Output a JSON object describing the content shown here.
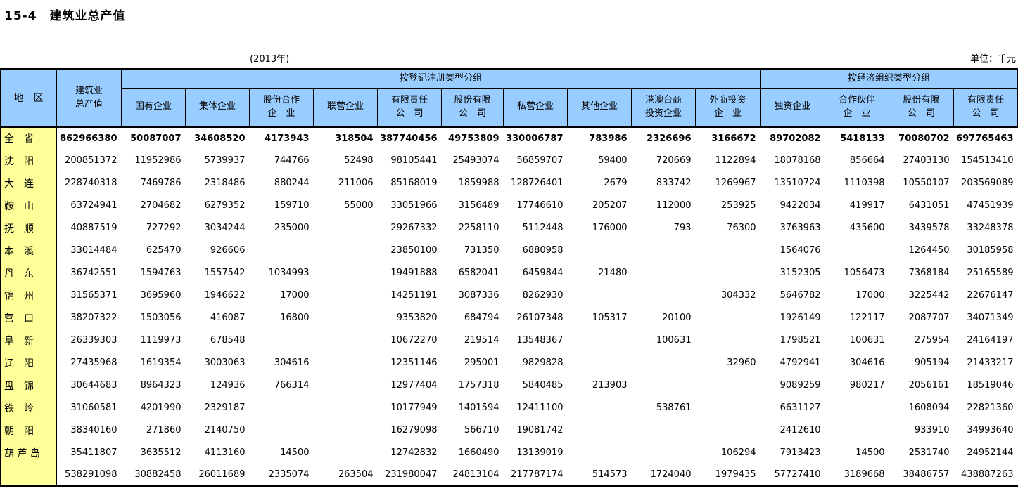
{
  "page": {
    "title": "15-4　建筑业总产值",
    "year_note": "(2013年)",
    "unit_note": "单位：千元"
  },
  "table": {
    "corner_header": "地　区",
    "total_col_header_line1": "建筑业",
    "total_col_header_line2": "总产值",
    "groups": [
      {
        "label": "按登记注册类型分组"
      },
      {
        "label": "按经济组织类型分组"
      }
    ],
    "columns": [
      {
        "line1": "国有企业",
        "line2": ""
      },
      {
        "line1": "集体企业",
        "line2": ""
      },
      {
        "line1": "股份合作",
        "line2": "企　业"
      },
      {
        "line1": "联营企业",
        "line2": ""
      },
      {
        "line1": "有限责任",
        "line2": "公　司"
      },
      {
        "line1": "股份有限",
        "line2": "公　司"
      },
      {
        "line1": "私营企业",
        "line2": ""
      },
      {
        "line1": "其他企业",
        "line2": ""
      },
      {
        "line1": "港澳台商",
        "line2": "投资企业"
      },
      {
        "line1": "外商投资",
        "line2": "企　业"
      },
      {
        "line1": "独资企业",
        "line2": ""
      },
      {
        "line1": "合作伙伴",
        "line2": "企　业"
      },
      {
        "line1": "股份有限",
        "line2": "公　司"
      },
      {
        "line1": "有限责任",
        "line2": "公　司"
      }
    ],
    "rows": [
      {
        "region": "全　省",
        "bold": true,
        "values": [
          "862966380",
          "50087007",
          "34608520",
          "4173943",
          "318504",
          "387740456",
          "49753809",
          "330006787",
          "783986",
          "2326696",
          "3166672",
          "89702082",
          "5418133",
          "70080702",
          "697765463"
        ]
      },
      {
        "region": "沈　阳",
        "bold": false,
        "values": [
          "200851372",
          "11952986",
          "5739937",
          "744766",
          "52498",
          "98105441",
          "25493074",
          "56859707",
          "59400",
          "720669",
          "1122894",
          "18078168",
          "856664",
          "27403130",
          "154513410"
        ]
      },
      {
        "region": "大　连",
        "bold": false,
        "values": [
          "228740318",
          "7469786",
          "2318486",
          "880244",
          "211006",
          "85168019",
          "1859988",
          "128726401",
          "2679",
          "833742",
          "1269967",
          "13510724",
          "1110398",
          "10550107",
          "203569089"
        ]
      },
      {
        "region": "鞍　山",
        "bold": false,
        "values": [
          "63724941",
          "2704682",
          "6279352",
          "159710",
          "55000",
          "33051966",
          "3156489",
          "17746610",
          "205207",
          "112000",
          "253925",
          "9422034",
          "419917",
          "6431051",
          "47451939"
        ]
      },
      {
        "region": "抚　顺",
        "bold": false,
        "values": [
          "40887519",
          "727292",
          "3034244",
          "235000",
          "",
          "29267332",
          "2258110",
          "5112448",
          "176000",
          "793",
          "76300",
          "3763963",
          "435600",
          "3439578",
          "33248378"
        ]
      },
      {
        "region": "本　溪",
        "bold": false,
        "values": [
          "33014484",
          "625470",
          "926606",
          "",
          "",
          "23850100",
          "731350",
          "6880958",
          "",
          "",
          "",
          "1564076",
          "",
          "1264450",
          "30185958"
        ]
      },
      {
        "region": "丹　东",
        "bold": false,
        "values": [
          "36742551",
          "1594763",
          "1557542",
          "1034993",
          "",
          "19491888",
          "6582041",
          "6459844",
          "21480",
          "",
          "",
          "3152305",
          "1056473",
          "7368184",
          "25165589"
        ]
      },
      {
        "region": "锦　州",
        "bold": false,
        "values": [
          "31565371",
          "3695960",
          "1946622",
          "17000",
          "",
          "14251191",
          "3087336",
          "8262930",
          "",
          "",
          "304332",
          "5646782",
          "17000",
          "3225442",
          "22676147"
        ]
      },
      {
        "region": "营　口",
        "bold": false,
        "values": [
          "38207322",
          "1503056",
          "416087",
          "16800",
          "",
          "9353820",
          "684794",
          "26107348",
          "105317",
          "20100",
          "",
          "1926149",
          "122117",
          "2087707",
          "34071349"
        ]
      },
      {
        "region": "阜　新",
        "bold": false,
        "values": [
          "26339303",
          "1119973",
          "678548",
          "",
          "",
          "10672270",
          "219514",
          "13548367",
          "",
          "100631",
          "",
          "1798521",
          "100631",
          "275954",
          "24164197"
        ]
      },
      {
        "region": "辽　阳",
        "bold": false,
        "values": [
          "27435968",
          "1619354",
          "3003063",
          "304616",
          "",
          "12351146",
          "295001",
          "9829828",
          "",
          "",
          "32960",
          "4792941",
          "304616",
          "905194",
          "21433217"
        ]
      },
      {
        "region": "盘　锦",
        "bold": false,
        "values": [
          "30644683",
          "8964323",
          "124936",
          "766314",
          "",
          "12977404",
          "1757318",
          "5840485",
          "213903",
          "",
          "",
          "9089259",
          "980217",
          "2056161",
          "18519046"
        ]
      },
      {
        "region": "铁　岭",
        "bold": false,
        "values": [
          "31060581",
          "4201990",
          "2329187",
          "",
          "",
          "10177949",
          "1401594",
          "12411100",
          "",
          "538761",
          "",
          "6631127",
          "",
          "1608094",
          "22821360"
        ]
      },
      {
        "region": "朝　阳",
        "bold": false,
        "values": [
          "38340160",
          "271860",
          "2140750",
          "",
          "",
          "16279098",
          "566710",
          "19081742",
          "",
          "",
          "",
          "2412610",
          "",
          "933910",
          "34993640"
        ]
      },
      {
        "region": "葫 芦 岛",
        "bold": false,
        "values": [
          "35411807",
          "3635512",
          "4113160",
          "14500",
          "",
          "12742832",
          "1660490",
          "13139019",
          "",
          "",
          "106294",
          "7913423",
          "14500",
          "2531740",
          "24952144"
        ]
      },
      {
        "region": "",
        "bold": false,
        "values": [
          "538291098",
          "30882458",
          "26011689",
          "2335074",
          "263504",
          "231980047",
          "24813104",
          "217787174",
          "514573",
          "1724040",
          "1979435",
          "57727410",
          "3189668",
          "38486757",
          "438887263"
        ]
      }
    ]
  }
}
